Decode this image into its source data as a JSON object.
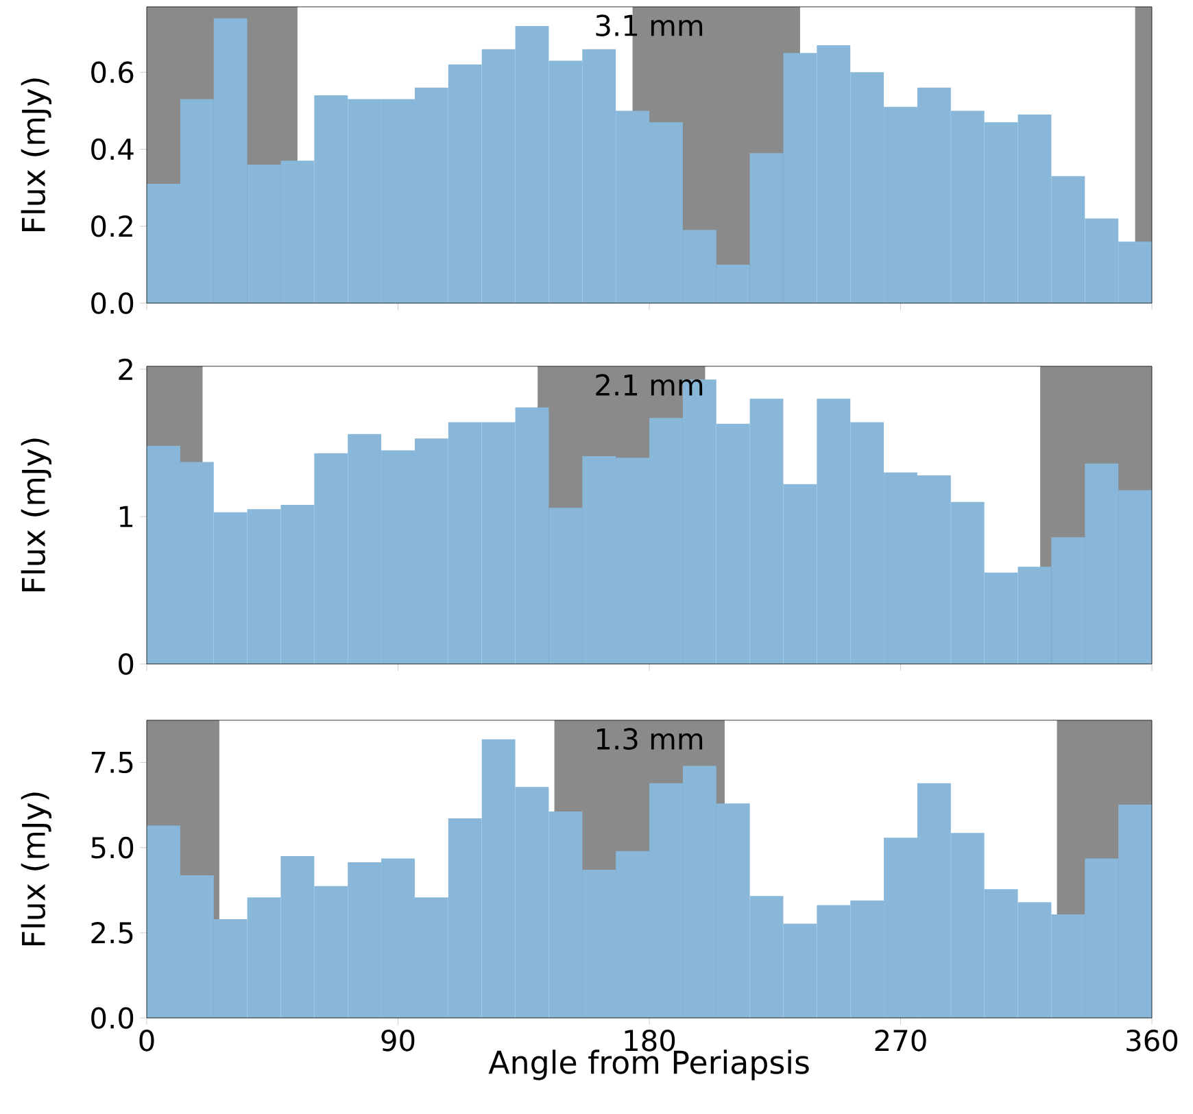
{
  "chart_data": [
    {
      "type": "histogram",
      "title": "3.1 mm",
      "ylabel": "Flux (mJy)",
      "bins": [
        0,
        12,
        24,
        36,
        48,
        60,
        72,
        84,
        96,
        108,
        120,
        132,
        144,
        156,
        168,
        180,
        192,
        204,
        216,
        228,
        240,
        252,
        264,
        276,
        288,
        300,
        312,
        324,
        336,
        348,
        360
      ],
      "values": [
        0.31,
        0.53,
        0.74,
        0.36,
        0.37,
        0.54,
        0.53,
        0.53,
        0.56,
        0.62,
        0.66,
        0.72,
        0.63,
        0.66,
        0.5,
        0.47,
        0.19,
        0.1,
        0.39,
        0.65,
        0.67,
        0.6,
        0.51,
        0.56,
        0.5,
        0.47,
        0.49,
        0.33,
        0.22,
        0.16
      ],
      "color": "#89b7d9",
      "xlim": [
        0,
        360
      ],
      "ylim": [
        0,
        0.77
      ],
      "xticks": [
        0,
        90,
        180,
        270,
        360
      ],
      "yticks": [
        {
          "value": 0,
          "label": "0.0"
        },
        0.2,
        0.4,
        0.6
      ],
      "tick_labels": "y",
      "bands": [
        {
          "axis": "x",
          "from": 0,
          "to": 54,
          "color": "#8a8a8a"
        },
        {
          "axis": "x",
          "from": 174,
          "to": 234,
          "color": "#8a8a8a"
        },
        {
          "axis": "x",
          "from": 354,
          "to": 360,
          "color": "#8a8a8a"
        }
      ]
    },
    {
      "type": "histogram",
      "title": "2.1 mm",
      "ylabel": "Flux (mJy)",
      "bins": [
        0,
        12,
        24,
        36,
        48,
        60,
        72,
        84,
        96,
        108,
        120,
        132,
        144,
        156,
        168,
        180,
        192,
        204,
        216,
        228,
        240,
        252,
        264,
        276,
        288,
        300,
        312,
        324,
        336,
        348,
        360
      ],
      "values": [
        1.48,
        1.37,
        1.03,
        1.05,
        1.08,
        1.43,
        1.56,
        1.45,
        1.53,
        1.64,
        1.64,
        1.74,
        1.06,
        1.41,
        1.4,
        1.67,
        1.93,
        1.63,
        1.8,
        1.22,
        1.8,
        1.64,
        1.3,
        1.28,
        1.1,
        0.62,
        0.66,
        0.86,
        1.36,
        1.18
      ],
      "color": "#89b7d9",
      "xlim": [
        0,
        360
      ],
      "ylim": [
        0,
        2.02
      ],
      "xticks": [
        0,
        90,
        180,
        270,
        360
      ],
      "yticks": [
        0,
        1,
        2
      ],
      "tick_labels": "y",
      "bands": [
        {
          "axis": "x",
          "from": 0,
          "to": 20,
          "color": "#8a8a8a"
        },
        {
          "axis": "x",
          "from": 140,
          "to": 200,
          "color": "#8a8a8a"
        },
        {
          "axis": "x",
          "from": 320,
          "to": 360,
          "color": "#8a8a8a"
        }
      ]
    },
    {
      "type": "histogram",
      "title": "1.3 mm",
      "xlabel": "Angle from Periapsis",
      "ylabel": "Flux (mJy)",
      "bins": [
        0,
        12,
        24,
        36,
        48,
        60,
        72,
        84,
        96,
        108,
        120,
        132,
        144,
        156,
        168,
        180,
        192,
        204,
        216,
        228,
        240,
        252,
        264,
        276,
        288,
        300,
        312,
        324,
        336,
        348,
        360
      ],
      "values": [
        5.65,
        4.19,
        2.9,
        3.54,
        4.75,
        3.87,
        4.57,
        4.68,
        3.54,
        5.86,
        8.18,
        6.78,
        6.06,
        4.35,
        4.9,
        6.89,
        7.4,
        6.3,
        3.58,
        2.77,
        3.31,
        3.45,
        5.29,
        6.89,
        5.43,
        3.78,
        3.4,
        3.04,
        4.68,
        6.26
      ],
      "color": "#89b7d9",
      "xlim": [
        0,
        360
      ],
      "ylim": [
        0,
        8.74
      ],
      "xticks": [
        0,
        90,
        180,
        270,
        360
      ],
      "yticks": [
        {
          "value": 0,
          "label": "0.0"
        },
        {
          "value": 2.5,
          "label": "2.5"
        },
        {
          "value": 5,
          "label": "5.0"
        },
        {
          "value": 7.5,
          "label": "7.5"
        }
      ],
      "bands": [
        {
          "axis": "x",
          "from": 0,
          "to": 26,
          "color": "#8a8a8a"
        },
        {
          "axis": "x",
          "from": 146,
          "to": 207,
          "color": "#8a8a8a"
        },
        {
          "axis": "x",
          "from": 326,
          "to": 360,
          "color": "#8a8a8a"
        }
      ]
    }
  ]
}
